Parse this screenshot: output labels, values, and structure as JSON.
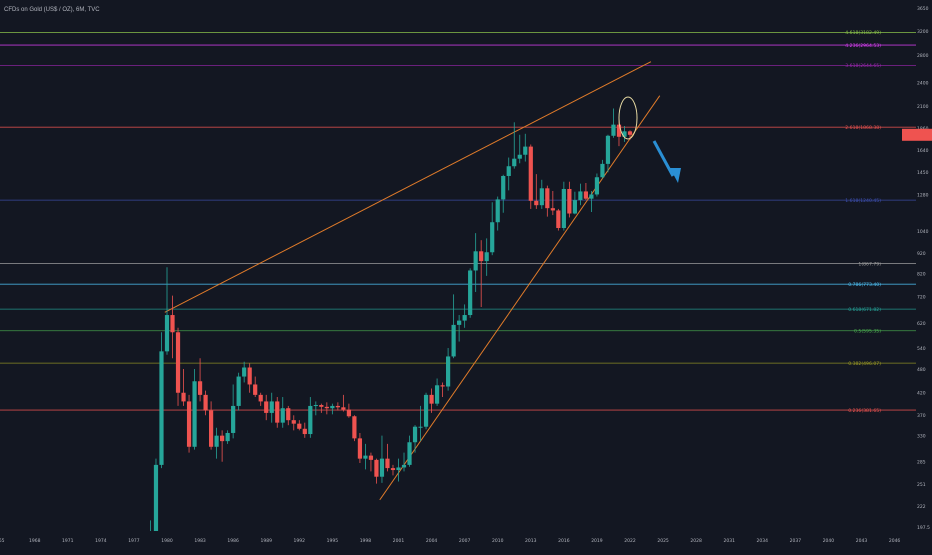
{
  "title": "CFDs on Gold (US$ / OZ), 6M, TVC",
  "colors": {
    "background": "#131722",
    "grid": "#1e222d",
    "up": "#26a69a",
    "down": "#ef5350",
    "wedge": "#e07b2a",
    "arrow": "#2a8fd4",
    "axis_text": "#b2b5be"
  },
  "chart_data": {
    "type": "candlestick",
    "symbol": "CFDs on Gold (US$ / OZ), 6M, TVC",
    "y_scale": "log",
    "x_ticks": [
      "65",
      "1968",
      "1971",
      "1974",
      "1977",
      "1980",
      "1983",
      "1986",
      "1989",
      "1992",
      "1995",
      "1998",
      "2001",
      "2004",
      "2007",
      "2010",
      "2013",
      "2016",
      "2019",
      "2022",
      "2025",
      "2028",
      "2031",
      "2034",
      "2037",
      "2040",
      "2043",
      "2046"
    ],
    "y_ticks": [
      3650,
      3200,
      2800,
      2400,
      2100,
      1860,
      1640,
      1450,
      1280,
      1040,
      920,
      820,
      720,
      620,
      540,
      480,
      420,
      370,
      330,
      285,
      251,
      222,
      197.5
    ],
    "candles": [
      {
        "t": 1978.5,
        "o": 150,
        "h": 205,
        "l": 140,
        "c": 190
      },
      {
        "t": 1979.0,
        "o": 190,
        "h": 290,
        "l": 185,
        "c": 280
      },
      {
        "t": 1979.5,
        "o": 280,
        "h": 590,
        "l": 275,
        "c": 530
      },
      {
        "t": 1980.0,
        "o": 530,
        "h": 850,
        "l": 520,
        "c": 650
      },
      {
        "t": 1980.5,
        "o": 650,
        "h": 725,
        "l": 510,
        "c": 590
      },
      {
        "t": 1981.0,
        "o": 590,
        "h": 605,
        "l": 390,
        "c": 420
      },
      {
        "t": 1981.5,
        "o": 420,
        "h": 480,
        "l": 390,
        "c": 400
      },
      {
        "t": 1982.0,
        "o": 400,
        "h": 415,
        "l": 300,
        "c": 310
      },
      {
        "t": 1982.5,
        "o": 310,
        "h": 480,
        "l": 305,
        "c": 448
      },
      {
        "t": 1983.0,
        "o": 448,
        "h": 510,
        "l": 400,
        "c": 415
      },
      {
        "t": 1983.5,
        "o": 415,
        "h": 425,
        "l": 370,
        "c": 380
      },
      {
        "t": 1984.0,
        "o": 380,
        "h": 400,
        "l": 305,
        "c": 310
      },
      {
        "t": 1984.5,
        "o": 310,
        "h": 345,
        "l": 290,
        "c": 330
      },
      {
        "t": 1985.0,
        "o": 330,
        "h": 340,
        "l": 285,
        "c": 320
      },
      {
        "t": 1985.5,
        "o": 320,
        "h": 340,
        "l": 315,
        "c": 335
      },
      {
        "t": 1986.0,
        "o": 335,
        "h": 440,
        "l": 325,
        "c": 390
      },
      {
        "t": 1986.5,
        "o": 390,
        "h": 470,
        "l": 380,
        "c": 460
      },
      {
        "t": 1987.0,
        "o": 460,
        "h": 500,
        "l": 445,
        "c": 484
      },
      {
        "t": 1987.5,
        "o": 484,
        "h": 495,
        "l": 420,
        "c": 440
      },
      {
        "t": 1988.0,
        "o": 440,
        "h": 460,
        "l": 410,
        "c": 415
      },
      {
        "t": 1988.5,
        "o": 415,
        "h": 420,
        "l": 390,
        "c": 400
      },
      {
        "t": 1989.0,
        "o": 400,
        "h": 415,
        "l": 360,
        "c": 375
      },
      {
        "t": 1989.5,
        "o": 375,
        "h": 420,
        "l": 355,
        "c": 400
      },
      {
        "t": 1990.0,
        "o": 400,
        "h": 410,
        "l": 345,
        "c": 355
      },
      {
        "t": 1990.5,
        "o": 355,
        "h": 410,
        "l": 345,
        "c": 385
      },
      {
        "t": 1991.0,
        "o": 385,
        "h": 390,
        "l": 350,
        "c": 360
      },
      {
        "t": 1991.5,
        "o": 360,
        "h": 370,
        "l": 340,
        "c": 353
      },
      {
        "t": 1992.0,
        "o": 353,
        "h": 360,
        "l": 340,
        "c": 343
      },
      {
        "t": 1992.5,
        "o": 343,
        "h": 355,
        "l": 326,
        "c": 333
      },
      {
        "t": 1993.0,
        "o": 333,
        "h": 410,
        "l": 326,
        "c": 390
      },
      {
        "t": 1993.5,
        "o": 390,
        "h": 400,
        "l": 370,
        "c": 392
      },
      {
        "t": 1994.0,
        "o": 392,
        "h": 395,
        "l": 375,
        "c": 388
      },
      {
        "t": 1994.5,
        "o": 388,
        "h": 398,
        "l": 372,
        "c": 385
      },
      {
        "t": 1995.0,
        "o": 385,
        "h": 395,
        "l": 372,
        "c": 390
      },
      {
        "t": 1995.5,
        "o": 390,
        "h": 398,
        "l": 380,
        "c": 387
      },
      {
        "t": 1996.0,
        "o": 387,
        "h": 415,
        "l": 378,
        "c": 382
      },
      {
        "t": 1996.5,
        "o": 382,
        "h": 395,
        "l": 365,
        "c": 368
      },
      {
        "t": 1997.0,
        "o": 368,
        "h": 370,
        "l": 320,
        "c": 325
      },
      {
        "t": 1997.5,
        "o": 325,
        "h": 335,
        "l": 283,
        "c": 290
      },
      {
        "t": 1998.0,
        "o": 290,
        "h": 315,
        "l": 273,
        "c": 295
      },
      {
        "t": 1998.5,
        "o": 295,
        "h": 300,
        "l": 270,
        "c": 288
      },
      {
        "t": 1999.0,
        "o": 288,
        "h": 290,
        "l": 252,
        "c": 262
      },
      {
        "t": 1999.5,
        "o": 262,
        "h": 330,
        "l": 253,
        "c": 290
      },
      {
        "t": 2000.0,
        "o": 290,
        "h": 315,
        "l": 270,
        "c": 275
      },
      {
        "t": 2000.5,
        "o": 275,
        "h": 280,
        "l": 264,
        "c": 272
      },
      {
        "t": 2001.0,
        "o": 272,
        "h": 290,
        "l": 255,
        "c": 276
      },
      {
        "t": 2001.5,
        "o": 276,
        "h": 300,
        "l": 270,
        "c": 280
      },
      {
        "t": 2002.0,
        "o": 280,
        "h": 330,
        "l": 277,
        "c": 318
      },
      {
        "t": 2002.5,
        "o": 318,
        "h": 350,
        "l": 300,
        "c": 347
      },
      {
        "t": 2003.0,
        "o": 347,
        "h": 390,
        "l": 320,
        "c": 347
      },
      {
        "t": 2003.5,
        "o": 347,
        "h": 420,
        "l": 342,
        "c": 415
      },
      {
        "t": 2004.0,
        "o": 415,
        "h": 430,
        "l": 375,
        "c": 395
      },
      {
        "t": 2004.5,
        "o": 395,
        "h": 455,
        "l": 390,
        "c": 438
      },
      {
        "t": 2005.0,
        "o": 438,
        "h": 445,
        "l": 410,
        "c": 435
      },
      {
        "t": 2005.5,
        "o": 435,
        "h": 540,
        "l": 425,
        "c": 515
      },
      {
        "t": 2006.0,
        "o": 515,
        "h": 730,
        "l": 510,
        "c": 615
      },
      {
        "t": 2006.5,
        "o": 615,
        "h": 650,
        "l": 560,
        "c": 630
      },
      {
        "t": 2007.0,
        "o": 630,
        "h": 690,
        "l": 605,
        "c": 650
      },
      {
        "t": 2007.5,
        "o": 650,
        "h": 845,
        "l": 640,
        "c": 835
      },
      {
        "t": 2008.0,
        "o": 835,
        "h": 1030,
        "l": 740,
        "c": 930
      },
      {
        "t": 2008.5,
        "o": 930,
        "h": 990,
        "l": 680,
        "c": 880
      },
      {
        "t": 2009.0,
        "o": 880,
        "h": 1000,
        "l": 810,
        "c": 925
      },
      {
        "t": 2009.5,
        "o": 925,
        "h": 1225,
        "l": 910,
        "c": 1095
      },
      {
        "t": 2010.0,
        "o": 1095,
        "h": 1265,
        "l": 1045,
        "c": 1245
      },
      {
        "t": 2010.5,
        "o": 1245,
        "h": 1430,
        "l": 1155,
        "c": 1420
      },
      {
        "t": 2011.0,
        "o": 1420,
        "h": 1575,
        "l": 1310,
        "c": 1500
      },
      {
        "t": 2011.5,
        "o": 1500,
        "h": 1920,
        "l": 1480,
        "c": 1565
      },
      {
        "t": 2012.0,
        "o": 1565,
        "h": 1790,
        "l": 1525,
        "c": 1600
      },
      {
        "t": 2012.5,
        "o": 1600,
        "h": 1800,
        "l": 1540,
        "c": 1675
      },
      {
        "t": 2013.0,
        "o": 1675,
        "h": 1695,
        "l": 1180,
        "c": 1235
      },
      {
        "t": 2013.5,
        "o": 1235,
        "h": 1435,
        "l": 1180,
        "c": 1205
      },
      {
        "t": 2014.0,
        "o": 1205,
        "h": 1390,
        "l": 1180,
        "c": 1325
      },
      {
        "t": 2014.5,
        "o": 1325,
        "h": 1345,
        "l": 1130,
        "c": 1185
      },
      {
        "t": 2015.0,
        "o": 1185,
        "h": 1305,
        "l": 1140,
        "c": 1170
      },
      {
        "t": 2015.5,
        "o": 1170,
        "h": 1180,
        "l": 1045,
        "c": 1060
      },
      {
        "t": 2016.0,
        "o": 1060,
        "h": 1375,
        "l": 1045,
        "c": 1320
      },
      {
        "t": 2016.5,
        "o": 1320,
        "h": 1375,
        "l": 1125,
        "c": 1150
      },
      {
        "t": 2017.0,
        "o": 1150,
        "h": 1300,
        "l": 1145,
        "c": 1240
      },
      {
        "t": 2017.5,
        "o": 1240,
        "h": 1360,
        "l": 1205,
        "c": 1302
      },
      {
        "t": 2018.0,
        "o": 1302,
        "h": 1365,
        "l": 1240,
        "c": 1250
      },
      {
        "t": 2018.5,
        "o": 1250,
        "h": 1305,
        "l": 1160,
        "c": 1280
      },
      {
        "t": 2019.0,
        "o": 1280,
        "h": 1440,
        "l": 1265,
        "c": 1410
      },
      {
        "t": 2019.5,
        "o": 1410,
        "h": 1555,
        "l": 1400,
        "c": 1520
      },
      {
        "t": 2020.0,
        "o": 1520,
        "h": 1790,
        "l": 1450,
        "c": 1780
      },
      {
        "t": 2020.5,
        "o": 1780,
        "h": 2075,
        "l": 1760,
        "c": 1895
      },
      {
        "t": 2021.0,
        "o": 1895,
        "h": 1960,
        "l": 1680,
        "c": 1770
      },
      {
        "t": 2021.5,
        "o": 1770,
        "h": 1880,
        "l": 1720,
        "c": 1825
      },
      {
        "t": 2022.0,
        "o": 1825,
        "h": 1835,
        "l": 1740,
        "c": 1790
      }
    ],
    "levels": [
      {
        "label": "4.618(3182.49)",
        "price": 3182,
        "color": "#8bc34a"
      },
      {
        "label": "4.236(2964.53)",
        "price": 2964,
        "color": "#e040fb"
      },
      {
        "label": "3.618(2644.65)",
        "price": 2644,
        "color": "#9c27b0"
      },
      {
        "label": "2.618(1868.38)",
        "price": 1868,
        "color": "#ef5350"
      },
      {
        "label": "1.618(1240.45)",
        "price": 1240,
        "color": "#3f51b5"
      },
      {
        "label": "1(867.79)",
        "price": 868,
        "color": "#9e9e9e"
      },
      {
        "label": "0.786(773.40)",
        "price": 773,
        "color": "#4fc3f7"
      },
      {
        "label": "0.618(671.82)",
        "price": 672,
        "color": "#26a69a"
      },
      {
        "label": "0.5(595.35)",
        "price": 595,
        "color": "#4caf50"
      },
      {
        "label": "0.382(496.07)",
        "price": 496,
        "color": "#9e9d24"
      },
      {
        "label": "0.236(381.65)",
        "price": 381,
        "color": "#ef5350"
      }
    ],
    "current_price": 1790,
    "grid": false,
    "legend": "none"
  }
}
